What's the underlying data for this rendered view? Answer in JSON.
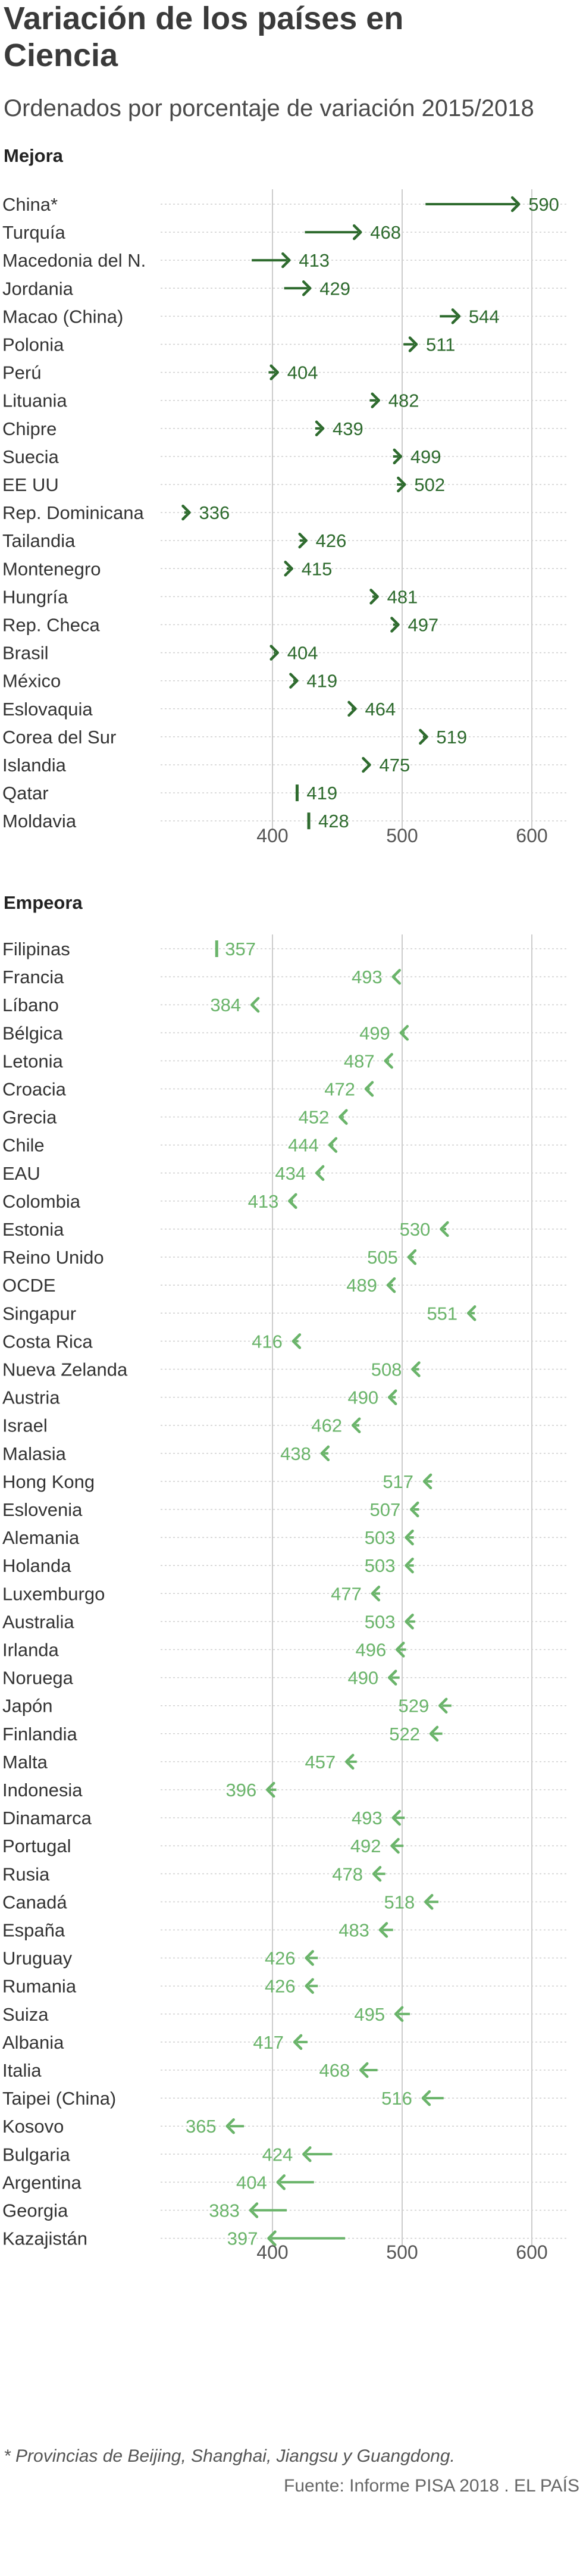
{
  "chart_data": {
    "type": "dot-arrow",
    "title_line1": "Variación de los países en",
    "title_line2": "Ciencia",
    "subtitle": "Ordenados por porcentaje de variación 2015/2018",
    "footnote": "* Provincias de Beijing, Shanghai, Jiangsu y Guangdong.",
    "source": "Fuente: Informe PISA 2018 . EL PAÍS",
    "xlim": [
      300,
      630
    ],
    "xticks": [
      400,
      500,
      600
    ],
    "colors": {
      "improve": "#2e6b2e",
      "worsen": "#6ab46a",
      "grid": "#cccccc",
      "label": "#333333"
    },
    "groups": [
      {
        "name": "Mejora",
        "rows": [
          {
            "country": "China*",
            "from": 518,
            "to": 590
          },
          {
            "country": "Turquía",
            "from": 425,
            "to": 468
          },
          {
            "country": "Macedonia del N.",
            "from": 384,
            "to": 413
          },
          {
            "country": "Jordania",
            "from": 409,
            "to": 429
          },
          {
            "country": "Macao (China)",
            "from": 529,
            "to": 544
          },
          {
            "country": "Polonia",
            "from": 501,
            "to": 511
          },
          {
            "country": "Perú",
            "from": 397,
            "to": 404
          },
          {
            "country": "Lituania",
            "from": 475,
            "to": 482
          },
          {
            "country": "Chipre",
            "from": 433,
            "to": 439
          },
          {
            "country": "Suecia",
            "from": 493,
            "to": 499
          },
          {
            "country": "EE UU",
            "from": 496,
            "to": 502
          },
          {
            "country": "Rep. Dominicana",
            "from": 332,
            "to": 336
          },
          {
            "country": "Tailandia",
            "from": 421,
            "to": 426
          },
          {
            "country": "Montenegro",
            "from": 411,
            "to": 415
          },
          {
            "country": "Hungría",
            "from": 477,
            "to": 481
          },
          {
            "country": "Rep. Checa",
            "from": 493,
            "to": 497
          },
          {
            "country": "Brasil",
            "from": 401,
            "to": 404
          },
          {
            "country": "México",
            "from": 416,
            "to": 419
          },
          {
            "country": "Eslovaquia",
            "from": 461,
            "to": 464
          },
          {
            "country": "Corea del Sur",
            "from": 516,
            "to": 519
          },
          {
            "country": "Islandia",
            "from": 473,
            "to": 475
          },
          {
            "country": "Qatar",
            "from": 418,
            "to": 419
          },
          {
            "country": "Moldavia",
            "from": 428,
            "to": 428
          }
        ]
      },
      {
        "name": "Empeora",
        "rows": [
          {
            "country": "Filipinas",
            "from": 357,
            "to": 357
          },
          {
            "country": "Francia",
            "from": 495,
            "to": 493
          },
          {
            "country": "Líbano",
            "from": 386,
            "to": 384
          },
          {
            "country": "Bélgica",
            "from": 502,
            "to": 499
          },
          {
            "country": "Letonia",
            "from": 490,
            "to": 487
          },
          {
            "country": "Croacia",
            "from": 475,
            "to": 472
          },
          {
            "country": "Grecia",
            "from": 455,
            "to": 452
          },
          {
            "country": "Chile",
            "from": 447,
            "to": 444
          },
          {
            "country": "EAU",
            "from": 437,
            "to": 434
          },
          {
            "country": "Colombia",
            "from": 416,
            "to": 413
          },
          {
            "country": "Estonia",
            "from": 534,
            "to": 530
          },
          {
            "country": "Reino Unido",
            "from": 509,
            "to": 505
          },
          {
            "country": "OCDE",
            "from": 493,
            "to": 489
          },
          {
            "country": "Singapur",
            "from": 556,
            "to": 551
          },
          {
            "country": "Costa Rica",
            "from": 420,
            "to": 416
          },
          {
            "country": "Nueva Zelanda",
            "from": 513,
            "to": 508
          },
          {
            "country": "Austria",
            "from": 495,
            "to": 490
          },
          {
            "country": "Israel",
            "from": 467,
            "to": 462
          },
          {
            "country": "Malasia",
            "from": 443,
            "to": 438
          },
          {
            "country": "Hong Kong",
            "from": 523,
            "to": 517
          },
          {
            "country": "Eslovenia",
            "from": 513,
            "to": 507
          },
          {
            "country": "Alemania",
            "from": 509,
            "to": 503
          },
          {
            "country": "Holanda",
            "from": 509,
            "to": 503
          },
          {
            "country": "Luxemburgo",
            "from": 483,
            "to": 477
          },
          {
            "country": "Australia",
            "from": 510,
            "to": 503
          },
          {
            "country": "Irlanda",
            "from": 503,
            "to": 496
          },
          {
            "country": "Noruega",
            "from": 498,
            "to": 490
          },
          {
            "country": "Japón",
            "from": 538,
            "to": 529
          },
          {
            "country": "Finlandia",
            "from": 531,
            "to": 522
          },
          {
            "country": "Malta",
            "from": 465,
            "to": 457
          },
          {
            "country": "Indonesia",
            "from": 403,
            "to": 396
          },
          {
            "country": "Dinamarca",
            "from": 502,
            "to": 493
          },
          {
            "country": "Portugal",
            "from": 501,
            "to": 492
          },
          {
            "country": "Rusia",
            "from": 487,
            "to": 478
          },
          {
            "country": "Canadá",
            "from": 528,
            "to": 518
          },
          {
            "country": "España",
            "from": 493,
            "to": 483
          },
          {
            "country": "Uruguay",
            "from": 435,
            "to": 426
          },
          {
            "country": "Rumania",
            "from": 435,
            "to": 426
          },
          {
            "country": "Suiza",
            "from": 506,
            "to": 495
          },
          {
            "country": "Albania",
            "from": 427,
            "to": 417
          },
          {
            "country": "Italia",
            "from": 481,
            "to": 468
          },
          {
            "country": "Taipei (China)",
            "from": 532,
            "to": 516
          },
          {
            "country": "Kosovo",
            "from": 378,
            "to": 365
          },
          {
            "country": "Bulgaria",
            "from": 446,
            "to": 424
          },
          {
            "country": "Argentina",
            "from": 432,
            "to": 404
          },
          {
            "country": "Georgia",
            "from": 411,
            "to": 383
          },
          {
            "country": "Kazajistán",
            "from": 456,
            "to": 397
          }
        ]
      }
    ]
  }
}
